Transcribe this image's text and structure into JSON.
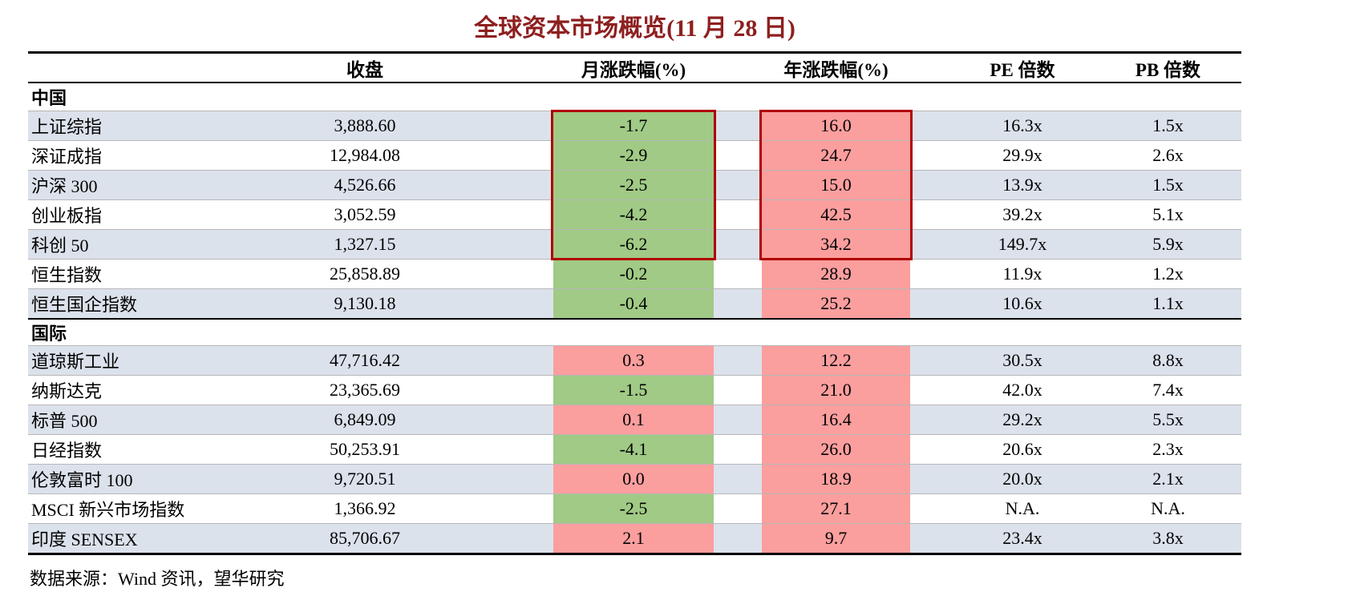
{
  "title": "全球资本市场概览(11 月 28 日)",
  "columns": {
    "close": "收盘",
    "monthly": "月涨跌幅(%)",
    "yearly": "年涨跌幅(%)",
    "pe": "PE 倍数",
    "pb": "PB 倍数"
  },
  "sections": [
    {
      "label": "中国",
      "rows": [
        {
          "name": "上证综指",
          "close": "3,888.60",
          "monthly": "-1.7",
          "yearly": "16.0",
          "pe": "16.3x",
          "pb": "1.5x"
        },
        {
          "name": "深证成指",
          "close": "12,984.08",
          "monthly": "-2.9",
          "yearly": "24.7",
          "pe": "29.9x",
          "pb": "2.6x"
        },
        {
          "name": "沪深 300",
          "close": "4,526.66",
          "monthly": "-2.5",
          "yearly": "15.0",
          "pe": "13.9x",
          "pb": "1.5x"
        },
        {
          "name": "创业板指",
          "close": "3,052.59",
          "monthly": "-4.2",
          "yearly": "42.5",
          "pe": "39.2x",
          "pb": "5.1x"
        },
        {
          "name": "科创 50",
          "close": "1,327.15",
          "monthly": "-6.2",
          "yearly": "34.2",
          "pe": "149.7x",
          "pb": "5.9x"
        },
        {
          "name": "恒生指数",
          "close": "25,858.89",
          "monthly": "-0.2",
          "yearly": "28.9",
          "pe": "11.9x",
          "pb": "1.2x"
        },
        {
          "name": "恒生国企指数",
          "close": "9,130.18",
          "monthly": "-0.4",
          "yearly": "25.2",
          "pe": "10.6x",
          "pb": "1.1x"
        }
      ]
    },
    {
      "label": "国际",
      "rows": [
        {
          "name": "道琼斯工业",
          "close": "47,716.42",
          "monthly": "0.3",
          "yearly": "12.2",
          "pe": "30.5x",
          "pb": "8.8x"
        },
        {
          "name": "纳斯达克",
          "close": "23,365.69",
          "monthly": "-1.5",
          "yearly": "21.0",
          "pe": "42.0x",
          "pb": "7.4x"
        },
        {
          "name": "标普 500",
          "close": "6,849.09",
          "monthly": "0.1",
          "yearly": "16.4",
          "pe": "29.2x",
          "pb": "5.5x"
        },
        {
          "name": "日经指数",
          "close": "50,253.91",
          "monthly": "-4.1",
          "yearly": "26.0",
          "pe": "20.6x",
          "pb": "2.3x"
        },
        {
          "name": "伦敦富时 100",
          "close": "9,720.51",
          "monthly": "0.0",
          "yearly": "18.9",
          "pe": "20.0x",
          "pb": "2.1x"
        },
        {
          "name": "MSCI 新兴市场指数",
          "close": "1,366.92",
          "monthly": "-2.5",
          "yearly": "27.1",
          "pe": "N.A.",
          "pb": "N.A."
        },
        {
          "name": "印度 SENSEX",
          "close": "85,706.67",
          "monthly": "2.1",
          "yearly": "9.7",
          "pe": "23.4x",
          "pb": "3.8x"
        }
      ]
    }
  ],
  "footer": "数据来源：Wind 资讯，望华研究",
  "colors": {
    "title": "#8e1f1f",
    "stripe": "#dce2ec",
    "down_green": "#a0ca85",
    "up_pink": "#fb9e9e",
    "highlight_box": "#b00000",
    "rule": "#000000",
    "row_line": "#b7b7b7"
  }
}
